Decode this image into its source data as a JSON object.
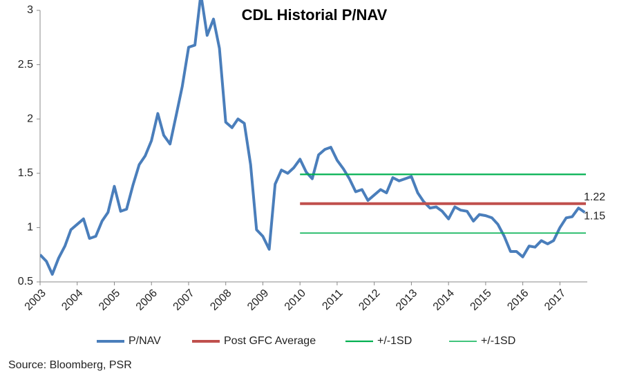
{
  "chart_data": {
    "type": "line",
    "title": "CDL Historial P/NAV",
    "source": "Source: Bloomberg, PSR",
    "annotations": [
      "1.22",
      "1.15"
    ],
    "xlim": [
      2003,
      2017.7
    ],
    "xticks": [
      2003,
      2004,
      2005,
      2006,
      2007,
      2008,
      2009,
      2010,
      2011,
      2012,
      2013,
      2014,
      2015,
      2016,
      2017
    ],
    "ylim": [
      0.5,
      3
    ],
    "yticks": [
      0.5,
      1,
      1.5,
      2,
      2.5,
      3
    ],
    "grid": false,
    "legend": "bottom",
    "series": [
      {
        "name": "P/NAV",
        "color": "#4a7ebb",
        "width": 4,
        "x": [
          2003,
          2003.17,
          2003.33,
          2003.5,
          2003.67,
          2003.83,
          2004,
          2004.17,
          2004.33,
          2004.5,
          2004.67,
          2004.83,
          2005,
          2005.17,
          2005.33,
          2005.5,
          2005.67,
          2005.83,
          2006,
          2006.17,
          2006.33,
          2006.5,
          2006.67,
          2006.83,
          2007,
          2007.17,
          2007.33,
          2007.5,
          2007.67,
          2007.83,
          2008,
          2008.17,
          2008.33,
          2008.5,
          2008.67,
          2008.83,
          2009,
          2009.17,
          2009.33,
          2009.5,
          2009.67,
          2009.83,
          2010,
          2010.17,
          2010.33,
          2010.5,
          2010.67,
          2010.83,
          2011,
          2011.17,
          2011.33,
          2011.5,
          2011.67,
          2011.83,
          2012,
          2012.17,
          2012.33,
          2012.5,
          2012.67,
          2012.83,
          2013,
          2013.17,
          2013.33,
          2013.5,
          2013.67,
          2013.83,
          2014,
          2014.17,
          2014.33,
          2014.5,
          2014.67,
          2014.83,
          2015,
          2015.17,
          2015.33,
          2015.5,
          2015.67,
          2015.83,
          2016,
          2016.17,
          2016.33,
          2016.5,
          2016.67,
          2016.83,
          2017,
          2017.17,
          2017.33,
          2017.5,
          2017.67
        ],
        "values": [
          0.75,
          0.69,
          0.57,
          0.72,
          0.83,
          0.98,
          1.03,
          1.08,
          0.9,
          0.92,
          1.06,
          1.14,
          1.38,
          1.15,
          1.17,
          1.39,
          1.58,
          1.66,
          1.8,
          2.05,
          1.85,
          1.77,
          2.04,
          2.3,
          2.66,
          2.68,
          3.15,
          2.77,
          2.92,
          2.65,
          1.97,
          1.92,
          2.0,
          1.96,
          1.58,
          0.98,
          0.92,
          0.8,
          1.4,
          1.53,
          1.5,
          1.55,
          1.63,
          1.51,
          1.45,
          1.67,
          1.72,
          1.74,
          1.62,
          1.54,
          1.45,
          1.33,
          1.35,
          1.25,
          1.3,
          1.35,
          1.32,
          1.46,
          1.43,
          1.45,
          1.47,
          1.32,
          1.24,
          1.18,
          1.19,
          1.15,
          1.08,
          1.19,
          1.16,
          1.15,
          1.06,
          1.12,
          1.11,
          1.09,
          1.03,
          0.92,
          0.78,
          0.78,
          0.73,
          0.83,
          0.82,
          0.88,
          0.85,
          0.88,
          1.0,
          1.09,
          1.1,
          1.18,
          1.14
        ]
      },
      {
        "name": "Post GFC Average",
        "color": "#c0504d",
        "width": 4,
        "x": [
          2010,
          2017.7
        ],
        "values": [
          1.22,
          1.22
        ]
      },
      {
        "name": "+/-1SD",
        "color": "#00b050",
        "width": 2.2,
        "x": [
          2010,
          2017.7
        ],
        "values": [
          1.49,
          1.49
        ]
      },
      {
        "name": "+/-1SD",
        "color": "#00b050",
        "width": 1.6,
        "x": [
          2010,
          2017.7
        ],
        "values": [
          0.95,
          0.95
        ]
      }
    ]
  }
}
